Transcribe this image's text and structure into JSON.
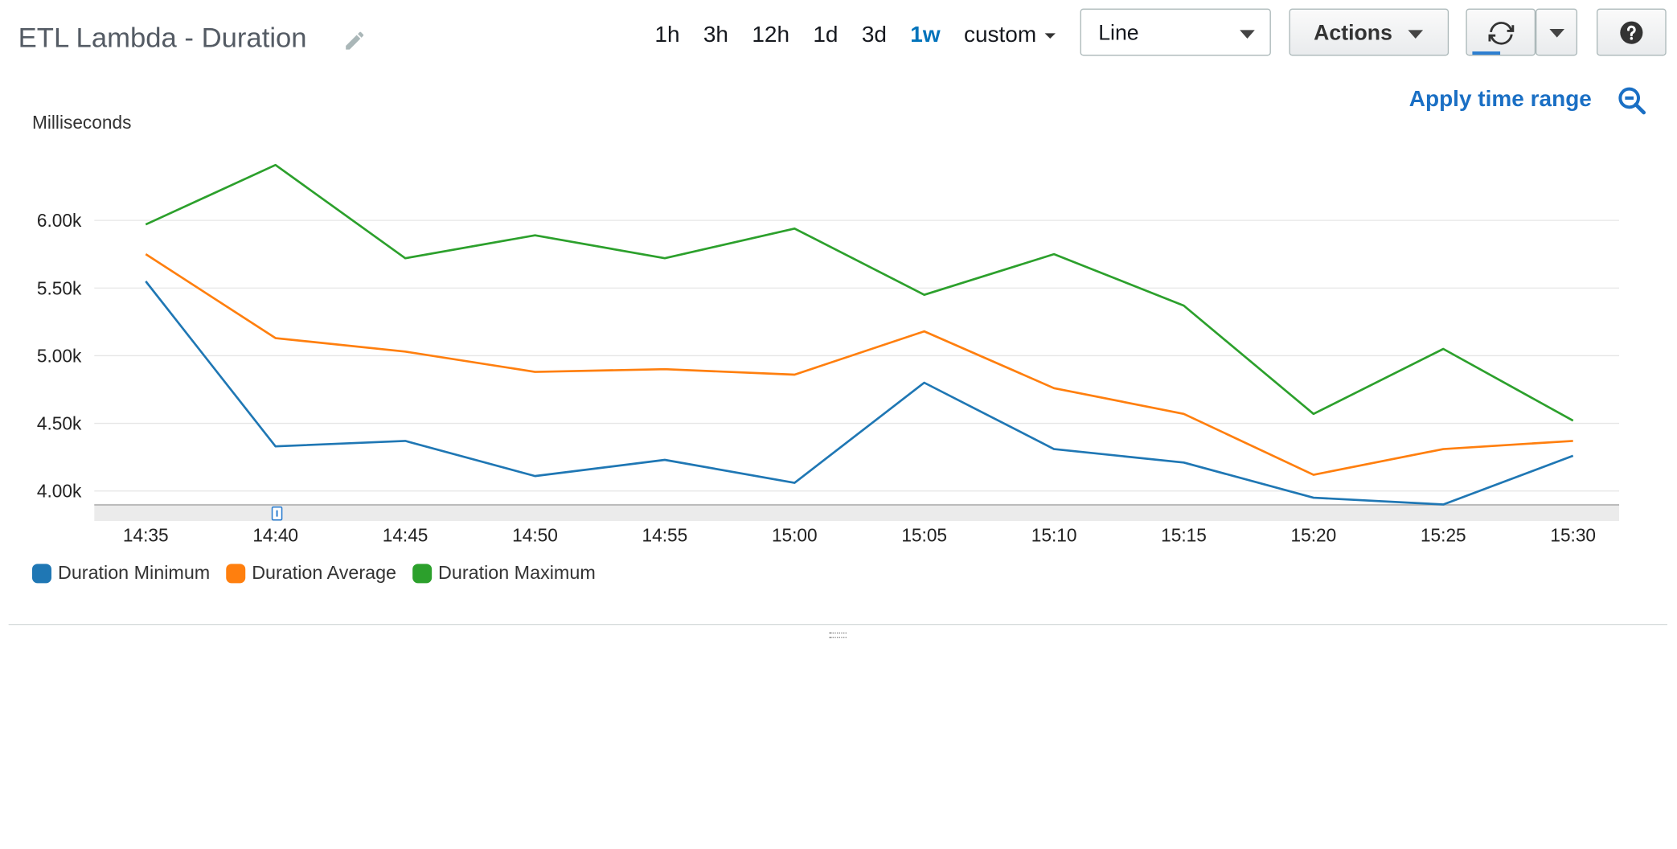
{
  "header": {
    "title": "ETL Lambda - Duration",
    "time_ranges": [
      "1h",
      "3h",
      "12h",
      "1d",
      "3d",
      "1w"
    ],
    "active_time_range": "1w",
    "custom_label": "custom",
    "chart_type_value": "Line",
    "actions_label": "Actions"
  },
  "apply_time_range_label": "Apply time range",
  "icons": {
    "edit": "pencil-icon",
    "refresh": "refresh-icon",
    "help": "question-icon",
    "zoom_out": "zoom-out-icon"
  },
  "colors": {
    "accent": "#0073bb",
    "minimum": "#1f77b4",
    "average": "#ff7f0e",
    "maximum": "#2ca02c"
  },
  "chart_data": {
    "type": "line",
    "ylabel": "Milliseconds",
    "x": [
      "14:35",
      "14:40",
      "14:45",
      "14:50",
      "14:55",
      "15:00",
      "15:05",
      "15:10",
      "15:15",
      "15:20",
      "15:25",
      "15:30"
    ],
    "yticks": [
      "4.00k",
      "4.50k",
      "5.00k",
      "5.50k",
      "6.00k"
    ],
    "ytick_values": [
      4000,
      4500,
      5000,
      5500,
      6000
    ],
    "ylim": [
      3900,
      6450
    ],
    "grid": true,
    "legend_position": "bottom-left",
    "series": [
      {
        "name": "Duration Minimum",
        "color": "#1f77b4",
        "values": [
          5550,
          4330,
          4370,
          4110,
          4230,
          4060,
          4800,
          4310,
          4210,
          3950,
          3900,
          4260
        ]
      },
      {
        "name": "Duration Average",
        "color": "#ff7f0e",
        "values": [
          5750,
          5130,
          5030,
          4880,
          4900,
          4860,
          5180,
          4760,
          4570,
          4120,
          4310,
          4370
        ]
      },
      {
        "name": "Duration Maximum",
        "color": "#2ca02c",
        "values": [
          5970,
          6410,
          5720,
          5890,
          5720,
          5940,
          5450,
          5750,
          5370,
          4570,
          5050,
          4520
        ]
      }
    ]
  }
}
